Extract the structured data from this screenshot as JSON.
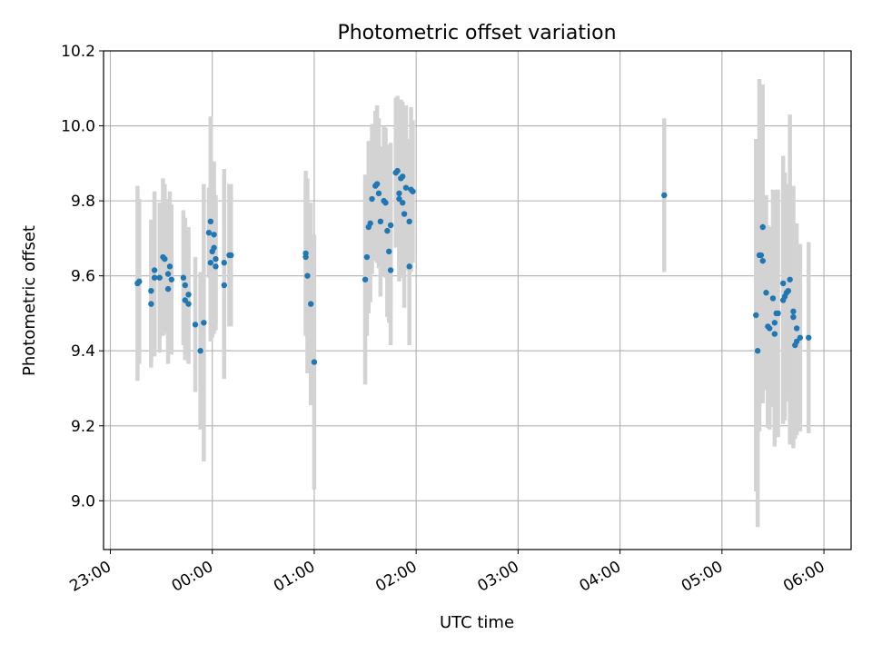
{
  "chart_data": {
    "type": "scatter",
    "title": "Photometric offset variation",
    "xlabel": "UTC time",
    "ylabel": "Photometric offset",
    "x_tick_labels": [
      "23:00",
      "00:00",
      "01:00",
      "02:00",
      "03:00",
      "04:00",
      "05:00",
      "06:00"
    ],
    "y_ticks": [
      "9.0",
      "9.2",
      "9.4",
      "9.6",
      "9.8",
      "10.0",
      "10.2"
    ],
    "xlim": [
      "22:56",
      "06:16"
    ],
    "ylim": [
      8.87,
      10.2
    ],
    "grid": true,
    "colors": {
      "point": "#1f77b4",
      "errorbar": "#d3d3d3",
      "grid": "#b0b0b0"
    },
    "points": [
      {
        "x": "23:16",
        "y": 9.58,
        "err": 0.26
      },
      {
        "x": "23:17",
        "y": 9.585,
        "err": 0.22
      },
      {
        "x": "23:24",
        "y": 9.525,
        "err": 0.17
      },
      {
        "x": "23:24",
        "y": 9.56,
        "err": 0.19
      },
      {
        "x": "23:26",
        "y": 9.595,
        "err": 0.21
      },
      {
        "x": "23:26",
        "y": 9.615,
        "err": 0.21
      },
      {
        "x": "23:29",
        "y": 9.595,
        "err": 0.2
      },
      {
        "x": "23:31",
        "y": 9.65,
        "err": 0.21
      },
      {
        "x": "23:32",
        "y": 9.645,
        "err": 0.2
      },
      {
        "x": "23:34",
        "y": 9.565,
        "err": 0.2
      },
      {
        "x": "23:34",
        "y": 9.605,
        "err": 0.2
      },
      {
        "x": "23:35",
        "y": 9.625,
        "err": 0.2
      },
      {
        "x": "23:36",
        "y": 9.59,
        "err": 0.2
      },
      {
        "x": "23:43",
        "y": 9.595,
        "err": 0.18
      },
      {
        "x": "23:44",
        "y": 9.575,
        "err": 0.18
      },
      {
        "x": "23:44",
        "y": 9.535,
        "err": 0.16
      },
      {
        "x": "23:46",
        "y": 9.55,
        "err": 0.18
      },
      {
        "x": "23:46",
        "y": 9.525,
        "err": 0.16
      },
      {
        "x": "23:50",
        "y": 9.47,
        "err": 0.18
      },
      {
        "x": "23:53",
        "y": 9.4,
        "err": 0.21
      },
      {
        "x": "23:55",
        "y": 9.475,
        "err": 0.37
      },
      {
        "x": "23:58",
        "y": 9.715,
        "err": 0.12
      },
      {
        "x": "23:59",
        "y": 9.635,
        "err": 0.21
      },
      {
        "x": "23:59",
        "y": 9.745,
        "err": 0.28
      },
      {
        "x": "00:00",
        "y": 9.665,
        "err": 0.23
      },
      {
        "x": "00:01",
        "y": 9.675,
        "err": 0.23
      },
      {
        "x": "00:01",
        "y": 9.71,
        "err": 0.12
      },
      {
        "x": "00:02",
        "y": 9.625,
        "err": 0.17
      },
      {
        "x": "00:02",
        "y": 9.645,
        "err": 0.17
      },
      {
        "x": "00:07",
        "y": 9.575,
        "err": 0.25
      },
      {
        "x": "00:07",
        "y": 9.635,
        "err": 0.25
      },
      {
        "x": "00:10",
        "y": 9.655,
        "err": 0.19
      },
      {
        "x": "00:11",
        "y": 9.655,
        "err": 0.19
      },
      {
        "x": "00:55",
        "y": 9.66,
        "err": 0.22
      },
      {
        "x": "00:55",
        "y": 9.65,
        "err": 0.2
      },
      {
        "x": "00:56",
        "y": 9.6,
        "err": 0.26
      },
      {
        "x": "00:58",
        "y": 9.525,
        "err": 0.27
      },
      {
        "x": "01:00",
        "y": 9.37,
        "err": 0.34
      },
      {
        "x": "01:30",
        "y": 9.59,
        "err": 0.28
      },
      {
        "x": "01:31",
        "y": 9.65,
        "err": 0.21
      },
      {
        "x": "01:32",
        "y": 9.73,
        "err": 0.23
      },
      {
        "x": "01:33",
        "y": 9.74,
        "err": 0.21
      },
      {
        "x": "01:34",
        "y": 9.805,
        "err": 0.2
      },
      {
        "x": "01:36",
        "y": 9.84,
        "err": 0.2
      },
      {
        "x": "01:37",
        "y": 9.845,
        "err": 0.21
      },
      {
        "x": "01:38",
        "y": 9.82,
        "err": 0.2
      },
      {
        "x": "01:39",
        "y": 9.745,
        "err": 0.2
      },
      {
        "x": "01:41",
        "y": 9.8,
        "err": 0.2
      },
      {
        "x": "01:42",
        "y": 9.795,
        "err": 0.2
      },
      {
        "x": "01:43",
        "y": 9.72,
        "err": 0.23
      },
      {
        "x": "01:44",
        "y": 9.665,
        "err": 0.19
      },
      {
        "x": "01:45",
        "y": 9.615,
        "err": 0.2
      },
      {
        "x": "01:45",
        "y": 9.735,
        "err": 0.22
      },
      {
        "x": "01:48",
        "y": 9.875,
        "err": 0.2
      },
      {
        "x": "01:49",
        "y": 9.88,
        "err": 0.2
      },
      {
        "x": "01:50",
        "y": 9.805,
        "err": 0.22
      },
      {
        "x": "01:50",
        "y": 9.82,
        "err": 0.2
      },
      {
        "x": "01:51",
        "y": 9.86,
        "err": 0.21
      },
      {
        "x": "01:52",
        "y": 9.865,
        "err": 0.2
      },
      {
        "x": "01:52",
        "y": 9.795,
        "err": 0.2
      },
      {
        "x": "01:53",
        "y": 9.765,
        "err": 0.25
      },
      {
        "x": "01:54",
        "y": 9.835,
        "err": 0.22
      },
      {
        "x": "01:56",
        "y": 9.745,
        "err": 0.22
      },
      {
        "x": "01:56",
        "y": 9.625,
        "err": 0.21
      },
      {
        "x": "01:57",
        "y": 9.83,
        "err": 0.22
      },
      {
        "x": "01:58",
        "y": 9.825,
        "err": 0.19
      },
      {
        "x": "04:26",
        "y": 9.815,
        "err": 0.205
      },
      {
        "x": "05:20",
        "y": 9.495,
        "err": 0.47
      },
      {
        "x": "05:21",
        "y": 9.4,
        "err": 0.47
      },
      {
        "x": "05:22",
        "y": 9.655,
        "err": 0.47
      },
      {
        "x": "05:23",
        "y": 9.655,
        "err": 0.38
      },
      {
        "x": "05:24",
        "y": 9.64,
        "err": 0.38
      },
      {
        "x": "05:24",
        "y": 9.73,
        "err": 0.38
      },
      {
        "x": "05:26",
        "y": 9.555,
        "err": 0.26
      },
      {
        "x": "05:27",
        "y": 9.465,
        "err": 0.27
      },
      {
        "x": "05:28",
        "y": 9.46,
        "err": 0.27
      },
      {
        "x": "05:30",
        "y": 9.54,
        "err": 0.29
      },
      {
        "x": "05:31",
        "y": 9.475,
        "err": 0.31
      },
      {
        "x": "05:31",
        "y": 9.445,
        "err": 0.3
      },
      {
        "x": "05:32",
        "y": 9.5,
        "err": 0.33
      },
      {
        "x": "05:33",
        "y": 9.5,
        "err": 0.33
      },
      {
        "x": "05:36",
        "y": 9.58,
        "err": 0.34
      },
      {
        "x": "05:36",
        "y": 9.535,
        "err": 0.33
      },
      {
        "x": "05:37",
        "y": 9.545,
        "err": 0.33
      },
      {
        "x": "05:38",
        "y": 9.555,
        "err": 0.29
      },
      {
        "x": "05:39",
        "y": 9.56,
        "err": 0.27
      },
      {
        "x": "05:40",
        "y": 9.59,
        "err": 0.44
      },
      {
        "x": "05:42",
        "y": 9.505,
        "err": 0.33
      },
      {
        "x": "05:42",
        "y": 9.49,
        "err": 0.35
      },
      {
        "x": "05:43",
        "y": 9.415,
        "err": 0.25
      },
      {
        "x": "05:44",
        "y": 9.425,
        "err": 0.25
      },
      {
        "x": "05:44",
        "y": 9.46,
        "err": 0.28
      },
      {
        "x": "05:46",
        "y": 9.435,
        "err": 0.25
      },
      {
        "x": "05:51",
        "y": 9.435,
        "err": 0.255
      }
    ]
  }
}
